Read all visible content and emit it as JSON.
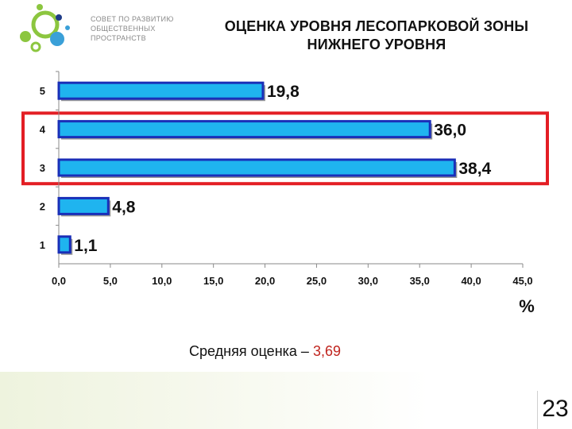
{
  "logo": {
    "lines": [
      "СОВЕТ ПО РАЗВИТИЮ",
      "ОБЩЕСТВЕННЫХ",
      "ПРОСТРАНСТВ"
    ],
    "colors": [
      "#8cc63f",
      "#3aa0d8",
      "#1f3c88"
    ]
  },
  "title_lines": [
    "ОЦЕНКА УРОВНЯ ЛЕСОПАРКОВОЙ ЗОНЫ",
    "НИЖНЕГО УРОВНЯ"
  ],
  "chart_data": {
    "type": "bar",
    "orientation": "horizontal",
    "categories": [
      "5",
      "4",
      "3",
      "2",
      "1"
    ],
    "values": [
      19.8,
      36.0,
      38.4,
      4.8,
      1.1
    ],
    "value_labels": [
      "19,8",
      "36,0",
      "38,4",
      "4,8",
      "1,1"
    ],
    "xlim": [
      0,
      45
    ],
    "xticks": [
      0,
      5,
      10,
      15,
      20,
      25,
      30,
      35,
      40,
      45
    ],
    "xtick_labels": [
      "0,0",
      "5,0",
      "10,0",
      "15,0",
      "20,0",
      "25,0",
      "30,0",
      "35,0",
      "40,0",
      "45,0"
    ],
    "xlabel": "%",
    "grid": false,
    "bar_color": "#1fb4ef",
    "bar_border_color": "#1a2fb8",
    "highlighted_categories": [
      "4",
      "3"
    ],
    "highlight_color": "#e31e24"
  },
  "summary": {
    "label": "Средняя оценка – ",
    "value": "3,69",
    "value_color": "#c0241e"
  },
  "page_number": "23"
}
